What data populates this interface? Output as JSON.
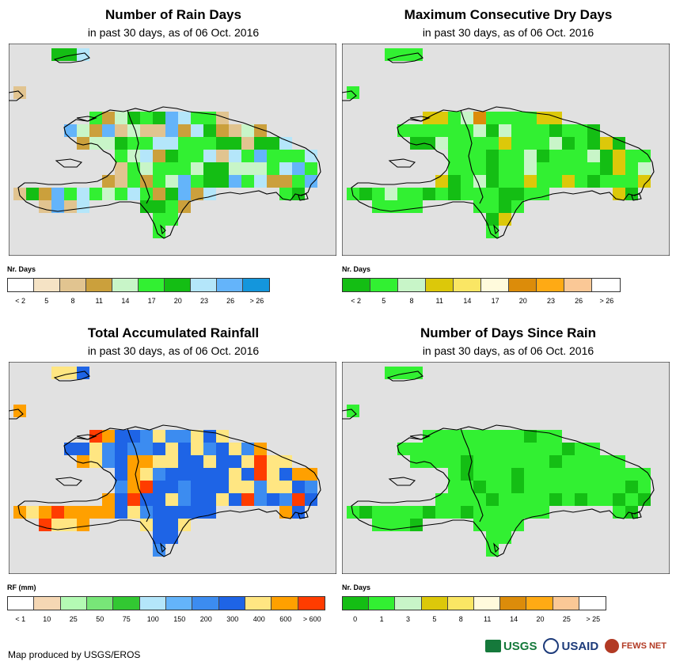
{
  "panels": [
    {
      "id": "rain-days",
      "title": "Number of Rain Days",
      "subtitle": "in past 30 days, as of 06 Oct. 2016",
      "legend_title": "Nr. Days",
      "legend_colors": [
        "#ffffff",
        "#f5e3c5",
        "#e1c490",
        "#cba03c",
        "#c8f5c8",
        "#32f032",
        "#14be14",
        "#b4e6fa",
        "#64b4fa",
        "#1496dc"
      ],
      "legend_labels": [
        "< 2",
        "5",
        "8",
        "11",
        "14",
        "17",
        "20",
        "23",
        "26",
        "> 26"
      ]
    },
    {
      "id": "max-dry-days",
      "title": "Maximum Consecutive Dry Days",
      "subtitle": "in past 30 days, as of 06 Oct. 2016",
      "legend_title": "Nr. Days",
      "legend_colors": [
        "#14be14",
        "#32f032",
        "#c8f5c8",
        "#dcc80a",
        "#fae664",
        "#fffadc",
        "#dc8c0a",
        "#ffaa14",
        "#fac896",
        "#ffffff"
      ],
      "legend_labels": [
        "< 2",
        "5",
        "8",
        "11",
        "14",
        "17",
        "20",
        "23",
        "26",
        "> 26"
      ]
    },
    {
      "id": "total-rainfall",
      "title": "Total Accumulated Rainfall",
      "subtitle": "in past 30 days, as of 06 Oct. 2016",
      "legend_title": "RF (mm)",
      "legend_colors": [
        "#ffffff",
        "#f5d7b4",
        "#b4fab4",
        "#78e678",
        "#32c832",
        "#b4e6fa",
        "#64b4fa",
        "#3c8cf0",
        "#1e64e6",
        "#ffe682",
        "#ffa000",
        "#ff3c00"
      ],
      "legend_labels": [
        "< 1",
        "10",
        "25",
        "50",
        "75",
        "100",
        "150",
        "200",
        "300",
        "400",
        "600",
        "> 600"
      ]
    },
    {
      "id": "days-since-rain",
      "title": "Number of Days Since Rain",
      "subtitle": "in past 30 days, as of 06 Oct. 2016",
      "legend_title": "Nr. Days",
      "legend_colors": [
        "#14be14",
        "#32f032",
        "#c8f5c8",
        "#dcc80a",
        "#fae664",
        "#fffadc",
        "#dc8c0a",
        "#ffaa14",
        "#fac896",
        "#ffffff"
      ],
      "legend_labels": [
        "0",
        "1",
        "3",
        "5",
        "8",
        "11",
        "14",
        "20",
        "25",
        "> 25"
      ]
    }
  ],
  "colors": {
    "map_background": "#e1e1e1",
    "outline": "#000000"
  },
  "footer": {
    "credit": "Map produced by USGS/EROS",
    "logos": [
      "USGS",
      "USAID",
      "FEWS NET"
    ]
  }
}
